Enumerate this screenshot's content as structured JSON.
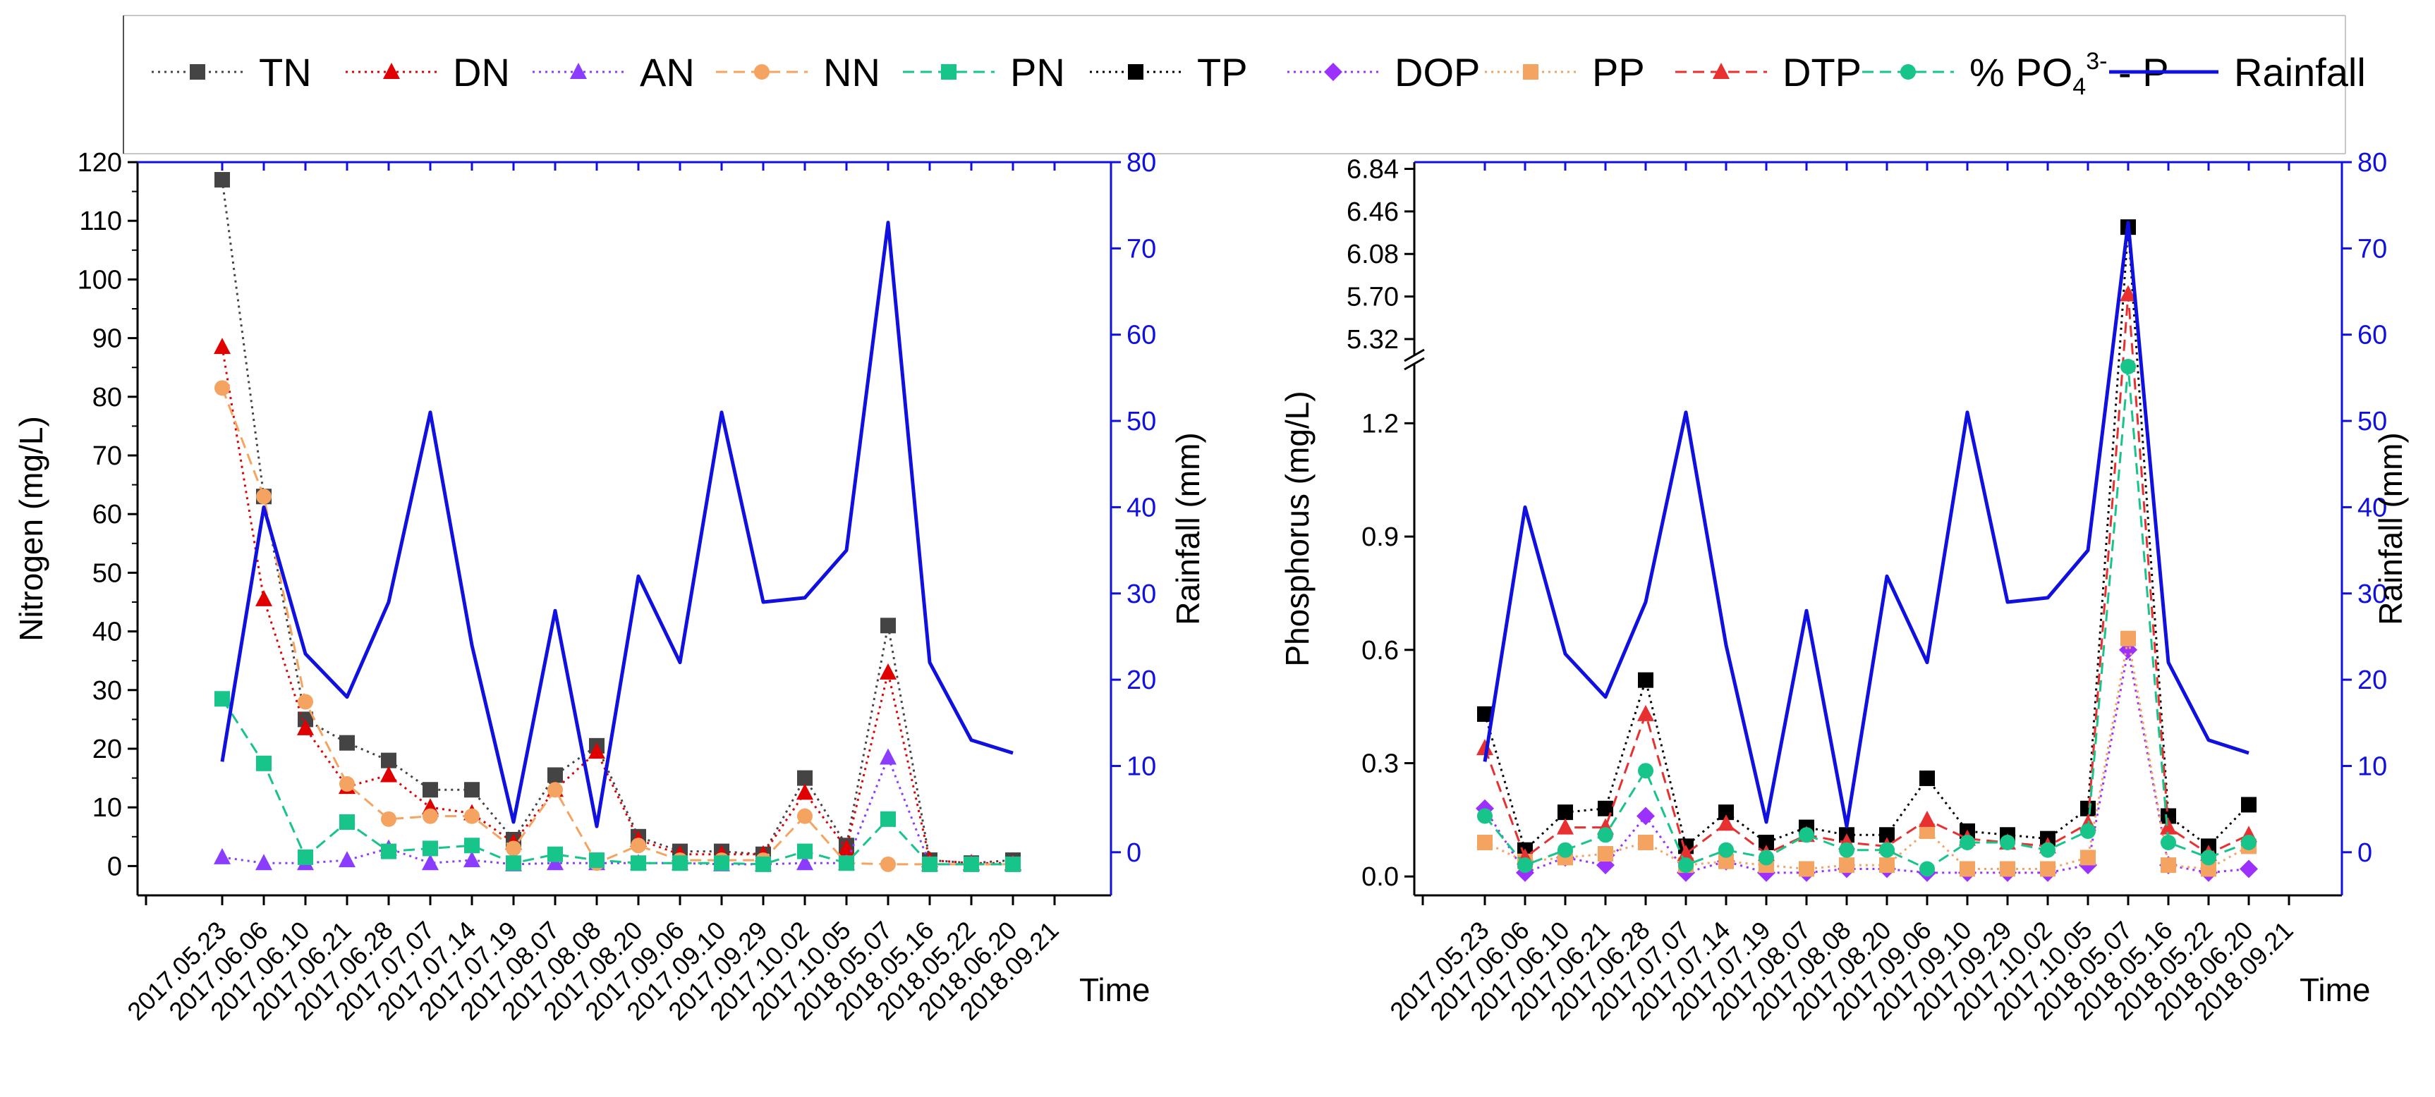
{
  "legend": {
    "items": [
      {
        "name": "TN",
        "color": "#444444",
        "marker": "square",
        "dash": "dot"
      },
      {
        "name": "DN",
        "color": "#e00000",
        "marker": "triangle",
        "dash": "dot"
      },
      {
        "name": "AN",
        "color": "#8a3dff",
        "marker": "triangle",
        "dash": "dot"
      },
      {
        "name": "NN",
        "color": "#f4a460",
        "marker": "circle",
        "dash": "dash"
      },
      {
        "name": "PN",
        "color": "#17c48a",
        "marker": "square",
        "dash": "dash"
      },
      {
        "name": "TP",
        "color": "#000000",
        "marker": "square",
        "dash": "dot"
      },
      {
        "name": "DOP",
        "color": "#9b30ff",
        "marker": "diamond",
        "dash": "dot"
      },
      {
        "name": "PP",
        "color": "#f4a460",
        "marker": "square",
        "dash": "dot"
      },
      {
        "name": "DTP",
        "color": "#e83030",
        "marker": "triangle",
        "dash": "dash"
      },
      {
        "name": "% PO4 3- - P",
        "name_parts": {
          "pre": "% PO",
          "sub": "4",
          "sup": "3-",
          "post": " - P"
        },
        "color": "#17c48a",
        "marker": "circle",
        "dash": "dash"
      },
      {
        "name": "Rainfall",
        "color": "#1010e0",
        "marker": "none",
        "dash": "solid"
      }
    ]
  },
  "chart_data": [
    {
      "type": "line",
      "panel": "nitrogen",
      "ylabel": "Nitrogen (mg/L)",
      "y2label": "Rainfall (mm)",
      "xlabel": "Time",
      "ylim": [
        -5,
        120
      ],
      "y2lim": [
        -5,
        80
      ],
      "yticks": [
        0,
        10,
        20,
        30,
        40,
        50,
        60,
        70,
        80,
        90,
        100,
        110,
        120
      ],
      "y2ticks": [
        0,
        10,
        20,
        30,
        40,
        50,
        60,
        70,
        80
      ],
      "categories": [
        "2017.05.23",
        "2017.06.06",
        "2017.06.10",
        "2017.06.21",
        "2017.06.28",
        "2017.07.07",
        "2017.07.14",
        "2017.07.19",
        "2017.08.07",
        "2017.08.08",
        "2017.08.20",
        "2017.09.06",
        "2017.09.10",
        "2017.09.29",
        "2017.10.02",
        "2017.10.05",
        "2018.05.07",
        "2018.05.16",
        "2018.05.22",
        "2018.06.20",
        "2018.09.21"
      ],
      "series": [
        {
          "name": "TN",
          "values": [
            117,
            63,
            25,
            21,
            18,
            13,
            13,
            4.5,
            15.5,
            20.5,
            5,
            2.5,
            2.5,
            2,
            15,
            3.5,
            41,
            1,
            0.5,
            1,
            null
          ]
        },
        {
          "name": "DN",
          "values": [
            88.5,
            45.5,
            23.5,
            13.5,
            15.5,
            10,
            9,
            4,
            13,
            19.5,
            4.5,
            2,
            2,
            2,
            12.5,
            3,
            33,
            1,
            0.5,
            0.5,
            null
          ]
        },
        {
          "name": "AN",
          "values": [
            1.5,
            0.5,
            0.5,
            1,
            3,
            0.5,
            1,
            0.3,
            0.5,
            0.5,
            0.5,
            0.5,
            0.3,
            0.3,
            0.5,
            0.5,
            18.5,
            0.3,
            0.3,
            0.3,
            null
          ]
        },
        {
          "name": "NN",
          "values": [
            81.5,
            63,
            28,
            14,
            8,
            8.5,
            8.5,
            3,
            13,
            0.5,
            3.5,
            1,
            1,
            1,
            8.5,
            0.5,
            0.3,
            0.3,
            0.3,
            0.3,
            null
          ]
        },
        {
          "name": "PN",
          "values": [
            28.5,
            17.5,
            1.5,
            7.5,
            2.5,
            3,
            3.5,
            0.5,
            2,
            1,
            0.5,
            0.5,
            0.5,
            0.3,
            2.5,
            0.5,
            8,
            0.3,
            0.3,
            0.3,
            null
          ]
        },
        {
          "name": "Rainfall",
          "axis": "right",
          "values": [
            10.5,
            40,
            23,
            18,
            29,
            51,
            24,
            3.5,
            28,
            3,
            32,
            22,
            51,
            29,
            29.5,
            35,
            73,
            22,
            13,
            11.5,
            null
          ]
        }
      ]
    },
    {
      "type": "line",
      "panel": "phosphorus",
      "ylabel": "Phosphorus (mg/L)",
      "y2label": "Rainfall (mm)",
      "xlabel": "Time",
      "ylim_lower": [
        -0.05,
        1.35
      ],
      "ylim_upper": [
        5.2,
        6.9
      ],
      "y2lim": [
        -5,
        80
      ],
      "yticks": [
        0.0,
        0.3,
        0.6,
        0.9,
        1.2,
        5.32,
        5.7,
        6.08,
        6.46,
        6.84
      ],
      "ytick_labels": [
        "0.0",
        "0.3",
        "0.6",
        "0.9",
        "1.2",
        "5.32",
        "5.70",
        "6.08",
        "6.46",
        "6.84"
      ],
      "y2ticks": [
        0,
        10,
        20,
        30,
        40,
        50,
        60,
        70,
        80
      ],
      "categories": [
        "2017.05.23",
        "2017.06.06",
        "2017.06.10",
        "2017.06.21",
        "2017.06.28",
        "2017.07.07",
        "2017.07.14",
        "2017.07.19",
        "2017.08.07",
        "2017.08.08",
        "2017.08.20",
        "2017.09.06",
        "2017.09.10",
        "2017.09.29",
        "2017.10.02",
        "2017.10.05",
        "2018.05.07",
        "2018.05.16",
        "2018.05.22",
        "2018.06.20",
        "2018.09.21"
      ],
      "series": [
        {
          "name": "TP",
          "values": [
            0.43,
            0.07,
            0.17,
            0.18,
            0.52,
            0.08,
            0.17,
            0.09,
            0.13,
            0.11,
            0.11,
            0.26,
            0.12,
            0.11,
            0.1,
            0.18,
            6.32,
            0.16,
            0.08,
            0.19,
            null
          ]
        },
        {
          "name": "DOP",
          "values": [
            0.18,
            0.01,
            0.05,
            0.03,
            0.16,
            0.01,
            0.04,
            0.01,
            0.01,
            0.02,
            0.02,
            0.01,
            0.01,
            0.01,
            0.01,
            0.03,
            0.6,
            0.03,
            0.01,
            0.02,
            null
          ]
        },
        {
          "name": "PP",
          "values": [
            0.09,
            0.04,
            0.05,
            0.06,
            0.09,
            0.03,
            0.04,
            0.03,
            0.02,
            0.03,
            0.03,
            0.12,
            0.02,
            0.02,
            0.02,
            0.05,
            0.63,
            0.03,
            0.02,
            0.08,
            null
          ]
        },
        {
          "name": "DTP",
          "values": [
            0.34,
            0.05,
            0.13,
            0.13,
            0.43,
            0.06,
            0.14,
            0.06,
            0.11,
            0.09,
            0.08,
            0.15,
            0.1,
            0.09,
            0.08,
            0.14,
            5.72,
            0.13,
            0.06,
            0.11,
            null
          ]
        },
        {
          "name": "% PO4 3- - P",
          "values": [
            0.16,
            0.03,
            0.07,
            0.11,
            0.28,
            0.03,
            0.07,
            0.05,
            0.11,
            0.07,
            0.07,
            0.02,
            0.09,
            0.09,
            0.07,
            0.12,
            1.35,
            0.09,
            0.05,
            0.09,
            null
          ]
        },
        {
          "name": "Rainfall",
          "axis": "right",
          "values": [
            10.5,
            40,
            23,
            18,
            29,
            51,
            24,
            3.5,
            28,
            3,
            32,
            22,
            51,
            29,
            29.5,
            35,
            73,
            22,
            13,
            11.5,
            null
          ]
        }
      ]
    }
  ]
}
